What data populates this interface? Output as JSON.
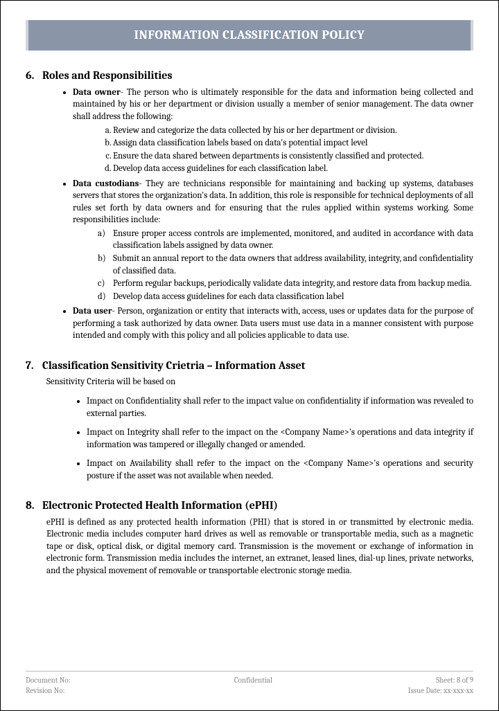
{
  "title": "INFORMATION CLASSIFICATION POLICY",
  "sections": {
    "s6": {
      "num": "6.",
      "heading": "Roles and Responsibilities",
      "roles": [
        {
          "name": "Data owner",
          "sep": "- ",
          "desc": "The person who is ultimately responsible for the data and information being collected and maintained by his or her department or division usually a member of senior management. The data owner shall address the following:",
          "items": [
            "Review and categorize the data collected by his or her department or division.",
            "Assign data classification labels based on data's potential impact level",
            "Ensure the data shared between departments is consistently classified and protected.",
            "Develop data access guidelines for each classification label."
          ],
          "listStyle": "alpha-dot"
        },
        {
          "name": "Data custodians",
          "sep": "- ",
          "desc": "They are technicians responsible for maintaining and backing up systems, databases servers that stores the organization's data. In addition, this role is responsible for technical deployments of all rules set forth by data owners and for ensuring that the rules applied within systems working. Some responsibilities include:",
          "items": [
            "Ensure proper access controls are implemented, monitored, and audited in accordance with data classification labels assigned by data owner.",
            "Submit an annual report to the data owners that address availability, integrity, and confidentiality of classified data.",
            "Perform regular backups, periodically validate data integrity, and restore data from backup media.",
            "Develop data access guidelines for each data classification label"
          ],
          "listStyle": "alpha-paren"
        },
        {
          "name": "Data user",
          "sep": "- ",
          "desc": "Person, organization or entity that interacts with, access, uses or updates data for the purpose of performing a task authorized by data owner. Data users must use data in a manner consistent with purpose intended and comply with this policy and all policies applicable to data use.",
          "items": [],
          "listStyle": ""
        }
      ]
    },
    "s7": {
      "num": "7.",
      "heading": "Classification Sensitivity  Crietria – Information  Asset",
      "intro": "Sensitivity Criteria will be based on",
      "bullets": [
        "Impact on Confidentiality shall refer to the impact value on confidentiality if information was revealed to external parties.",
        "Impact on Integrity shall refer to the impact on the <Company Name>'s operations and data integrity if information was tampered or illegally changed or amended.",
        "Impact on Availability shall refer to the impact on the <Company Name>'s operations and security posture if the asset was not available when needed."
      ]
    },
    "s8": {
      "num": "8.",
      "heading": "Electronic Protected Health Information (ePHI)",
      "body": "ePHI is defined as any protected health information (PHI) that is stored in or transmitted by electronic media. Electronic media includes computer hard drives as well as removable or transportable media, such as a magnetic tape or disk, optical disk, or digital memory card. Transmission is the movement or exchange of information in electronic form. Transmission media includes the internet, an extranet, leased lines, dial-up lines, private networks, and the physical movement of removable or transportable electronic storage media."
    }
  },
  "footer": {
    "docNoLabel": "Document No:",
    "revNoLabel": "Revision No:",
    "center": "Confidential",
    "sheet": "Sheet: 8 of 9",
    "issueDate": "Issue Date: xx-xxx-xx"
  }
}
